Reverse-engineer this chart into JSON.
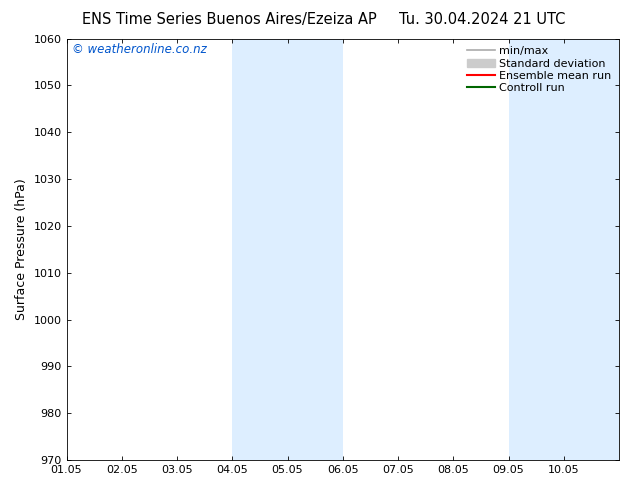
{
  "title_left": "ENS Time Series Buenos Aires/Ezeiza AP",
  "title_right": "Tu. 30.04.2024 21 UTC",
  "ylabel": "Surface Pressure (hPa)",
  "xlabel_ticks": [
    "01.05",
    "02.05",
    "03.05",
    "04.05",
    "05.05",
    "06.05",
    "07.05",
    "08.05",
    "09.05",
    "10.05"
  ],
  "xlim": [
    0.0,
    10.0
  ],
  "ylim": [
    970,
    1060
  ],
  "yticks": [
    970,
    980,
    990,
    1000,
    1010,
    1020,
    1030,
    1040,
    1050,
    1060
  ],
  "background_color": "#ffffff",
  "plot_bg_color": "#ffffff",
  "shaded_bands": [
    {
      "x_start": 3.0,
      "x_end": 4.0,
      "color": "#ddeeff"
    },
    {
      "x_start": 4.0,
      "x_end": 5.0,
      "color": "#ddeeff"
    },
    {
      "x_start": 8.0,
      "x_end": 9.0,
      "color": "#ddeeff"
    },
    {
      "x_start": 9.0,
      "x_end": 10.0,
      "color": "#ddeeff"
    }
  ],
  "legend_entries": [
    {
      "label": "min/max",
      "color": "#aaaaaa",
      "lw": 1.2,
      "style": "solid"
    },
    {
      "label": "Standard deviation",
      "color": "#cccccc",
      "lw": 7,
      "style": "solid"
    },
    {
      "label": "Ensemble mean run",
      "color": "#ff0000",
      "lw": 1.5,
      "style": "solid"
    },
    {
      "label": "Controll run",
      "color": "#006600",
      "lw": 1.5,
      "style": "solid"
    }
  ],
  "watermark": "© weatheronline.co.nz",
  "watermark_color": "#0055cc",
  "watermark_fontsize": 8.5,
  "title_fontsize": 10.5,
  "label_fontsize": 9,
  "tick_fontsize": 8,
  "legend_fontsize": 8
}
